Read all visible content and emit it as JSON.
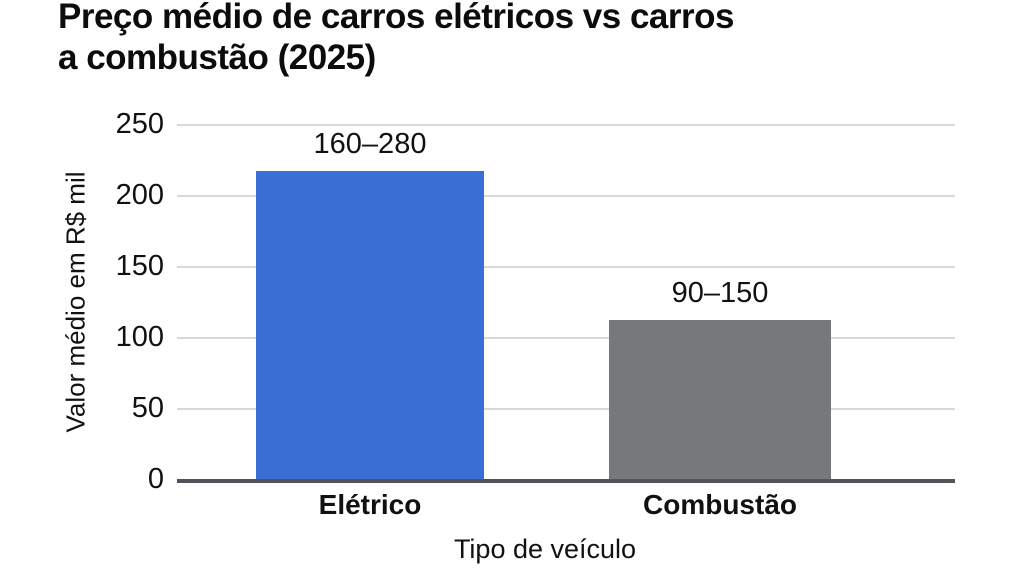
{
  "chart": {
    "title": "Preço médio de carros elétricos vs carros a combustão (2025)",
    "title_lines": [
      "Preço médio de carros elétricos vs carros",
      "a combustão (2025)"
    ]
  },
  "chart_data": {
    "type": "bar",
    "title": "Preço médio de carros elétricos vs carros a combustão (2025)",
    "categories": [
      "Elétrico",
      "Combustão"
    ],
    "values": [
      217,
      112
    ],
    "bar_labels": [
      "160–280",
      "90–150"
    ],
    "value_ranges": [
      [
        160,
        280
      ],
      [
        90,
        150
      ]
    ],
    "xlabel": "Tipo de veículo",
    "ylabel": "Valor médio em R$ mil",
    "ylim": [
      0,
      250
    ],
    "yticks": [
      0,
      50,
      100,
      150,
      200,
      250
    ],
    "grid": "horizontal",
    "legend_position": "none",
    "bar_colors": [
      "#3A6ED5",
      "#77787C"
    ]
  },
  "colors": {
    "background": "#FFFFFF",
    "text": "#0C0C0C",
    "gridline": "#D8D8D8",
    "axis_line": "#505358",
    "electric_bar": "#3A6ED5",
    "combustion_bar": "#77787C"
  }
}
